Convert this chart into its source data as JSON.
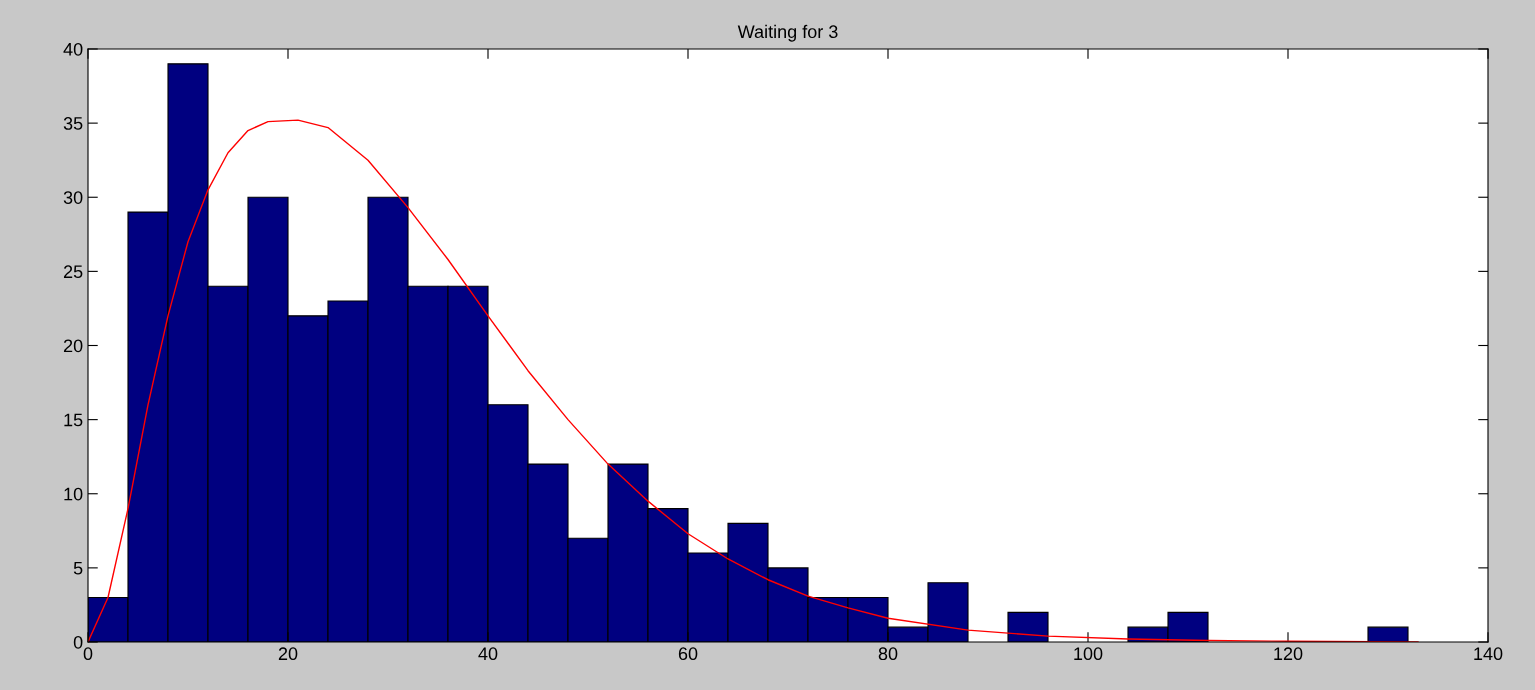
{
  "chart_data": {
    "type": "histogram",
    "title": "Waiting for 3",
    "bins": [
      0,
      4,
      8,
      12,
      16,
      20,
      24,
      28,
      32,
      36,
      40,
      44,
      48,
      52,
      56,
      60,
      64,
      68,
      72,
      76,
      80,
      84,
      88,
      92,
      96,
      100,
      104,
      108,
      112,
      116,
      120,
      124,
      128,
      132
    ],
    "values": [
      3,
      29,
      39,
      24,
      30,
      22,
      23,
      30,
      24,
      24,
      16,
      12,
      7,
      12,
      9,
      6,
      8,
      5,
      3,
      3,
      1,
      4,
      0,
      2,
      0,
      0,
      1,
      2,
      0,
      0,
      0,
      0,
      1
    ],
    "color": "#000080",
    "series": [
      {
        "type": "line",
        "color": "#ff0000",
        "x": [
          0,
          2,
          4,
          6,
          8,
          10,
          12,
          14,
          16,
          18,
          21,
          24,
          28,
          32,
          36,
          40,
          44,
          48,
          52,
          56,
          60,
          64,
          68,
          72,
          76,
          80,
          88,
          96,
          104,
          112,
          120,
          133
        ],
        "values": [
          0,
          3,
          9,
          16,
          22,
          27,
          30.5,
          33,
          34.5,
          35.1,
          35.2,
          34.7,
          32.5,
          29.3,
          25.8,
          22,
          18.3,
          15,
          12,
          9.5,
          7.3,
          5.6,
          4.2,
          3.1,
          2.3,
          1.6,
          0.8,
          0.4,
          0.2,
          0.1,
          0.05,
          0
        ]
      }
    ],
    "xlim": [
      0,
      140
    ],
    "ylim": [
      0,
      40
    ],
    "xticks": [
      0,
      20,
      40,
      60,
      80,
      100,
      120,
      140
    ],
    "yticks": [
      0,
      5,
      10,
      15,
      20,
      25,
      30,
      35,
      40
    ],
    "grid": false
  }
}
